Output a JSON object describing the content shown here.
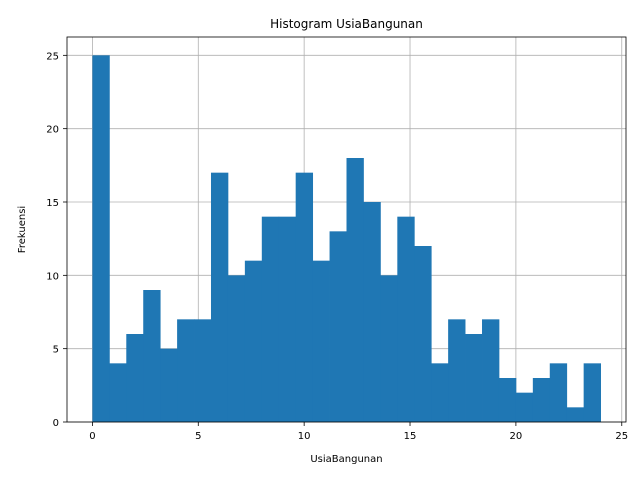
{
  "chart_data": {
    "type": "bar",
    "title": "Histogram UsiaBangunan",
    "xlabel": "UsiaBangunan",
    "ylabel": "Frekuensi",
    "xlim": [
      -1.2,
      25.2
    ],
    "ylim": [
      0,
      26.25
    ],
    "xticks": [
      0,
      5,
      10,
      15,
      20,
      25
    ],
    "yticks": [
      0,
      5,
      10,
      15,
      20,
      25
    ],
    "grid": true,
    "bar_color": "#1f77b4",
    "bin_start": 0,
    "bin_width": 0.8,
    "values": [
      25,
      4,
      6,
      9,
      5,
      7,
      7,
      17,
      10,
      11,
      14,
      14,
      17,
      11,
      13,
      18,
      15,
      10,
      14,
      12,
      4,
      7,
      6,
      7,
      3,
      2,
      3,
      4,
      1,
      4
    ]
  }
}
